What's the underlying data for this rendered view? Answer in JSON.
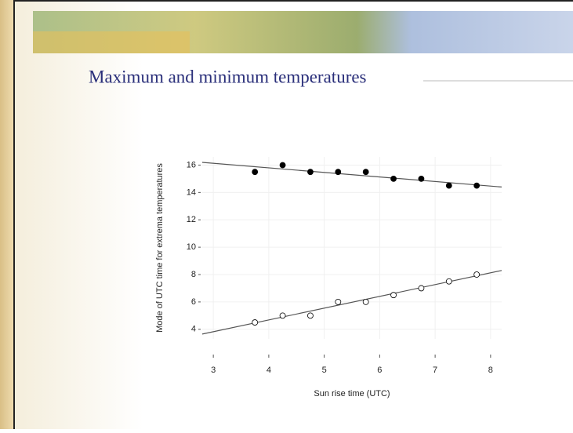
{
  "slide_title": "Maximum and minimum temperatures",
  "chart_data": {
    "type": "scatter",
    "xlabel": "Sun rise time (UTC)",
    "ylabel": "Mode of UTC time for extrema temperatures",
    "x": [
      3.75,
      4.25,
      4.75,
      5.25,
      5.75,
      6.25,
      6.75,
      7.25,
      7.75
    ],
    "series": [
      {
        "color": "#000000",
        "marker": "filled",
        "values": [
          15.5,
          16,
          15.5,
          15.5,
          15.5,
          15,
          15,
          14.5,
          14.5
        ]
      },
      {
        "color": "#000000",
        "marker": "open",
        "values": [
          4.5,
          5,
          5,
          6,
          6,
          6.5,
          7,
          7.5,
          8
        ]
      }
    ],
    "fit_lines": [
      {
        "color": "#555555",
        "x": [
          2.8,
          8.2
        ],
        "values": [
          16.2,
          14.4
        ]
      },
      {
        "color": "#555555",
        "x": [
          2.8,
          8.2
        ],
        "values": [
          3.65,
          8.3
        ]
      }
    ],
    "xlim": [
      2.8,
      8.2
    ],
    "ylim": [
      3.3,
      16.6
    ],
    "xticks": [
      3,
      4,
      5,
      6,
      7,
      8
    ],
    "yticks": [
      4,
      6,
      8,
      10,
      12,
      14,
      16
    ],
    "grid": true
  }
}
